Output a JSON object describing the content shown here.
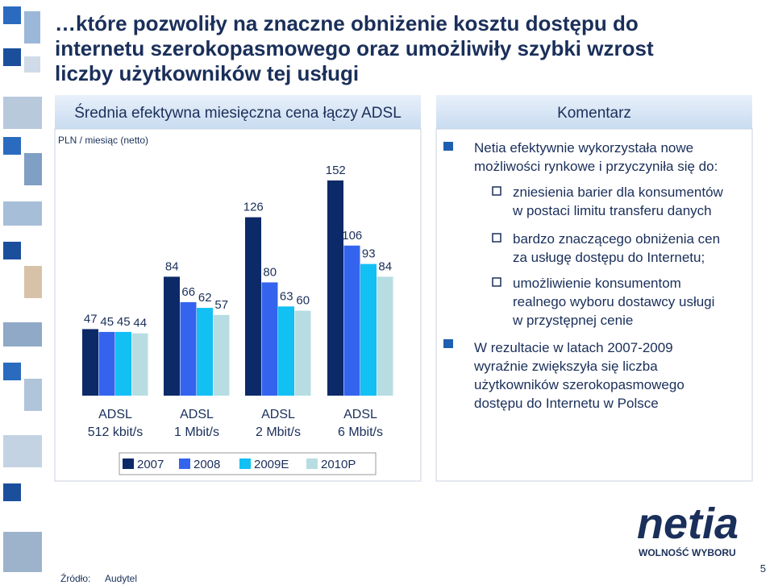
{
  "title": [
    "…które pozwoliły na znaczne obniżenie kosztu dostępu do",
    "internetu szerokopasmowego oraz umożliwiły szybki wzrost",
    "liczby użytkowników tej usługi"
  ],
  "chart_panel": {
    "heading": "Średnia efektywna miesięczna cena łączy ADSL",
    "unit": "PLN / miesiąc (netto)"
  },
  "chart_data": {
    "type": "bar",
    "categories": [
      "ADSL\n512 kbit/s",
      "ADSL\n1 Mbit/s",
      "ADSL\n2 Mbit/s",
      "ADSL\n6 Mbit/s"
    ],
    "series": [
      {
        "name": "2007",
        "color": "#0c2a68",
        "values": [
          47,
          84,
          126,
          152
        ]
      },
      {
        "name": "2008",
        "color": "#3464ee",
        "values": [
          45,
          66,
          80,
          106
        ]
      },
      {
        "name": "2009E",
        "color": "#12c0f4",
        "values": [
          45,
          62,
          63,
          93
        ]
      },
      {
        "name": "2010P",
        "color": "#b7dde2",
        "values": [
          44,
          57,
          60,
          84
        ]
      }
    ]
  },
  "comment": {
    "heading": "Komentarz",
    "intro": [
      "Netia efektywnie wykorzystała nowe",
      "możliwości rynkowe i przyczyniła się do:"
    ],
    "items": [
      [
        "zniesienia barier dla konsumentów",
        "w postaci limitu transferu danych"
      ],
      [
        "bardzo znaczącego obniżenia cen",
        "za usługę dostępu do Internetu;"
      ],
      [
        "umożliwienie konsumentom",
        "realnego wyboru dostawcy usługi",
        "w przystępnej cenie"
      ]
    ],
    "conclusion": [
      "W rezultacie w latach 2007-2009",
      "wyraźnie zwiększyła się liczba",
      "użytkowników szerokopasmowego",
      "dostępu do Internetu w Polsce"
    ]
  },
  "source": {
    "label": "Źródło:",
    "value": "Audytel"
  },
  "logo": {
    "name": "netia",
    "tagline": "WOLNOŚĆ WYBORU"
  },
  "page_number": 5
}
